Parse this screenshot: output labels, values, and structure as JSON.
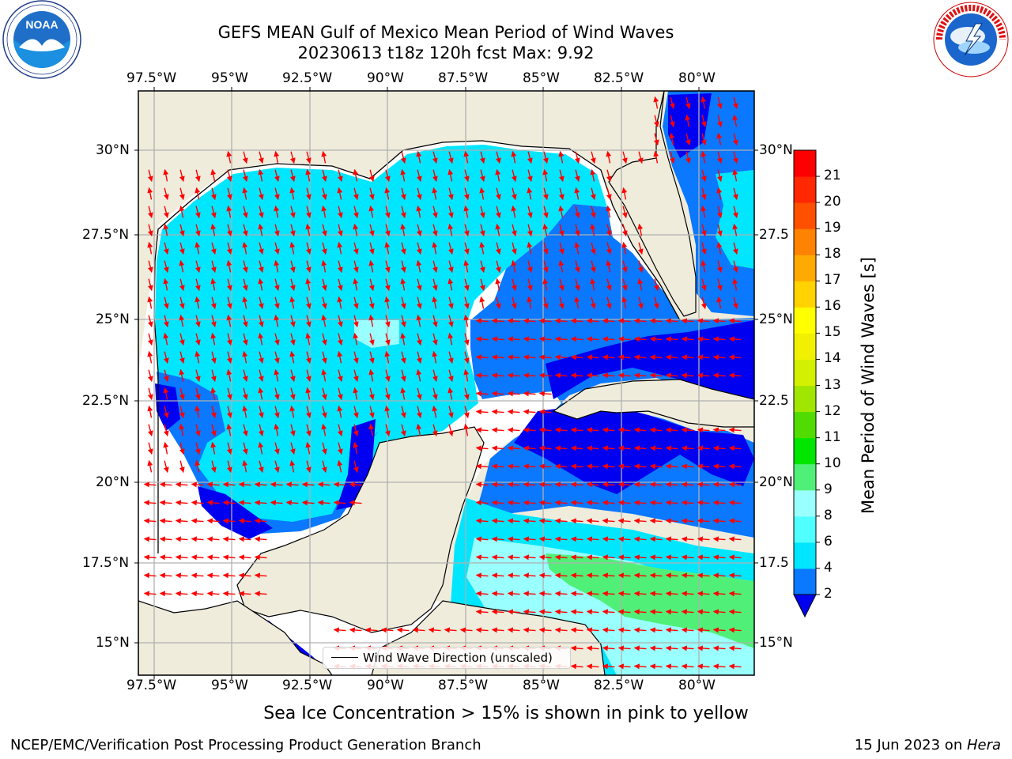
{
  "title": {
    "line1": "GEFS MEAN Gulf of Mexico Mean Period of Wind Waves",
    "line2": "20230613 t18z 120h fcst   Max: 9.92"
  },
  "logos": {
    "left": "NOAA",
    "left_ring": "NATIONAL OCEANIC AND ATMOSPHERIC ADMINISTRATION · U.S. DEPARTMENT OF COMMERCE",
    "right_ring": "NATIONAL WEATHER SERVICE"
  },
  "map": {
    "lon_labels": [
      "97.5°W",
      "95°W",
      "92.5°W",
      "90°W",
      "87.5°W",
      "85°W",
      "82.5°W",
      "80°W"
    ],
    "lat_labels_left": [
      "30°N",
      "27.5°N",
      "25°N",
      "22.5°N",
      "20°N",
      "17.5°N",
      "15°N"
    ],
    "lat_labels_right": [
      "30°N",
      "27.5",
      "25°N",
      "22.5",
      "20°N",
      "17.5",
      "15°N"
    ],
    "legend_label": "Wind Wave Direction (unscaled)",
    "colors": {
      "land": "#efecdc",
      "ocean_none": "#ffffff",
      "arrow": "#ff0000",
      "grid": "#b0b0b0"
    }
  },
  "colorbar": {
    "label": "Mean Period of Wind Waves [s]",
    "tick_labels": [
      "2",
      "4",
      "6",
      "8",
      "9",
      "10",
      "11",
      "12",
      "13",
      "14",
      "15",
      "16",
      "17",
      "18",
      "19",
      "20",
      "21"
    ],
    "colors": [
      "#0000f0",
      "#0a78ff",
      "#00e6ff",
      "#50ffff",
      "#9affff",
      "#50f078",
      "#00e600",
      "#50dc00",
      "#a0e600",
      "#d2f000",
      "#f0f000",
      "#ffff00",
      "#ffd200",
      "#ffaa00",
      "#ff8200",
      "#ff5000",
      "#ff2800",
      "#ff0000"
    ]
  },
  "notes": {
    "sea_ice": "Sea Ice Concentration > 15% is shown in pink to yellow",
    "footer_left": "NCEP/EMC/Verification Post Processing Product Generation Branch",
    "footer_right_prefix": "15 Jun 2023 on ",
    "footer_right_host": "Hera"
  }
}
